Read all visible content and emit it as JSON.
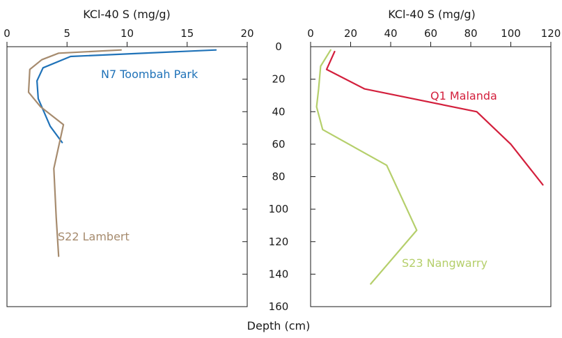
{
  "chart_data": [
    {
      "type": "line",
      "xlabel": "KCl-40 S (mg/g)",
      "ylabel": "Depth (cm)",
      "xlim": [
        0,
        20
      ],
      "ylim": [
        0,
        160
      ],
      "x_ticks": [
        "0",
        "5",
        "10",
        "15",
        "20"
      ],
      "y_ticks": [
        "0",
        "20",
        "40",
        "60",
        "80",
        "100",
        "120",
        "140",
        "160"
      ],
      "series": [
        {
          "name": "N7 Toombah Park",
          "color": "#1f72b8",
          "points": [
            [
              17.4,
              2
            ],
            [
              5.3,
              6
            ],
            [
              3.0,
              13
            ],
            [
              2.5,
              21
            ],
            [
              2.6,
              32
            ],
            [
              3.6,
              49
            ],
            [
              4.6,
              59
            ]
          ]
        },
        {
          "name": "S22 Lambert",
          "color": "#a68b6e",
          "points": [
            [
              9.5,
              2
            ],
            [
              4.3,
              4
            ],
            [
              2.9,
              8
            ],
            [
              1.9,
              14
            ],
            [
              1.8,
              28
            ],
            [
              2.8,
              37
            ],
            [
              4.7,
              48
            ],
            [
              3.9,
              75
            ],
            [
              4.1,
              105
            ],
            [
              4.3,
              129
            ]
          ]
        }
      ]
    },
    {
      "type": "line",
      "xlabel": "KCl-40 S (mg/g)",
      "ylabel": "Depth (cm)",
      "xlim": [
        0,
        120
      ],
      "ylim": [
        0,
        160
      ],
      "x_ticks": [
        "0",
        "20",
        "40",
        "60",
        "80",
        "100",
        "120"
      ],
      "y_ticks": [
        "0",
        "20",
        "40",
        "60",
        "80",
        "100",
        "120",
        "140",
        "160"
      ],
      "series": [
        {
          "name": "Q1 Malanda",
          "color": "#d31f3c",
          "points": [
            [
              12,
              3
            ],
            [
              8,
              14
            ],
            [
              27,
              26
            ],
            [
              83,
              40
            ],
            [
              100,
              60
            ],
            [
              116,
              85
            ]
          ]
        },
        {
          "name": "S23 Nangwarry",
          "color": "#b5cf6b",
          "points": [
            [
              10,
              2
            ],
            [
              5,
              12
            ],
            [
              4,
              26
            ],
            [
              3,
              37
            ],
            [
              6,
              51
            ],
            [
              38,
              73
            ],
            [
              53,
              113
            ],
            [
              30,
              146
            ]
          ]
        }
      ]
    }
  ]
}
